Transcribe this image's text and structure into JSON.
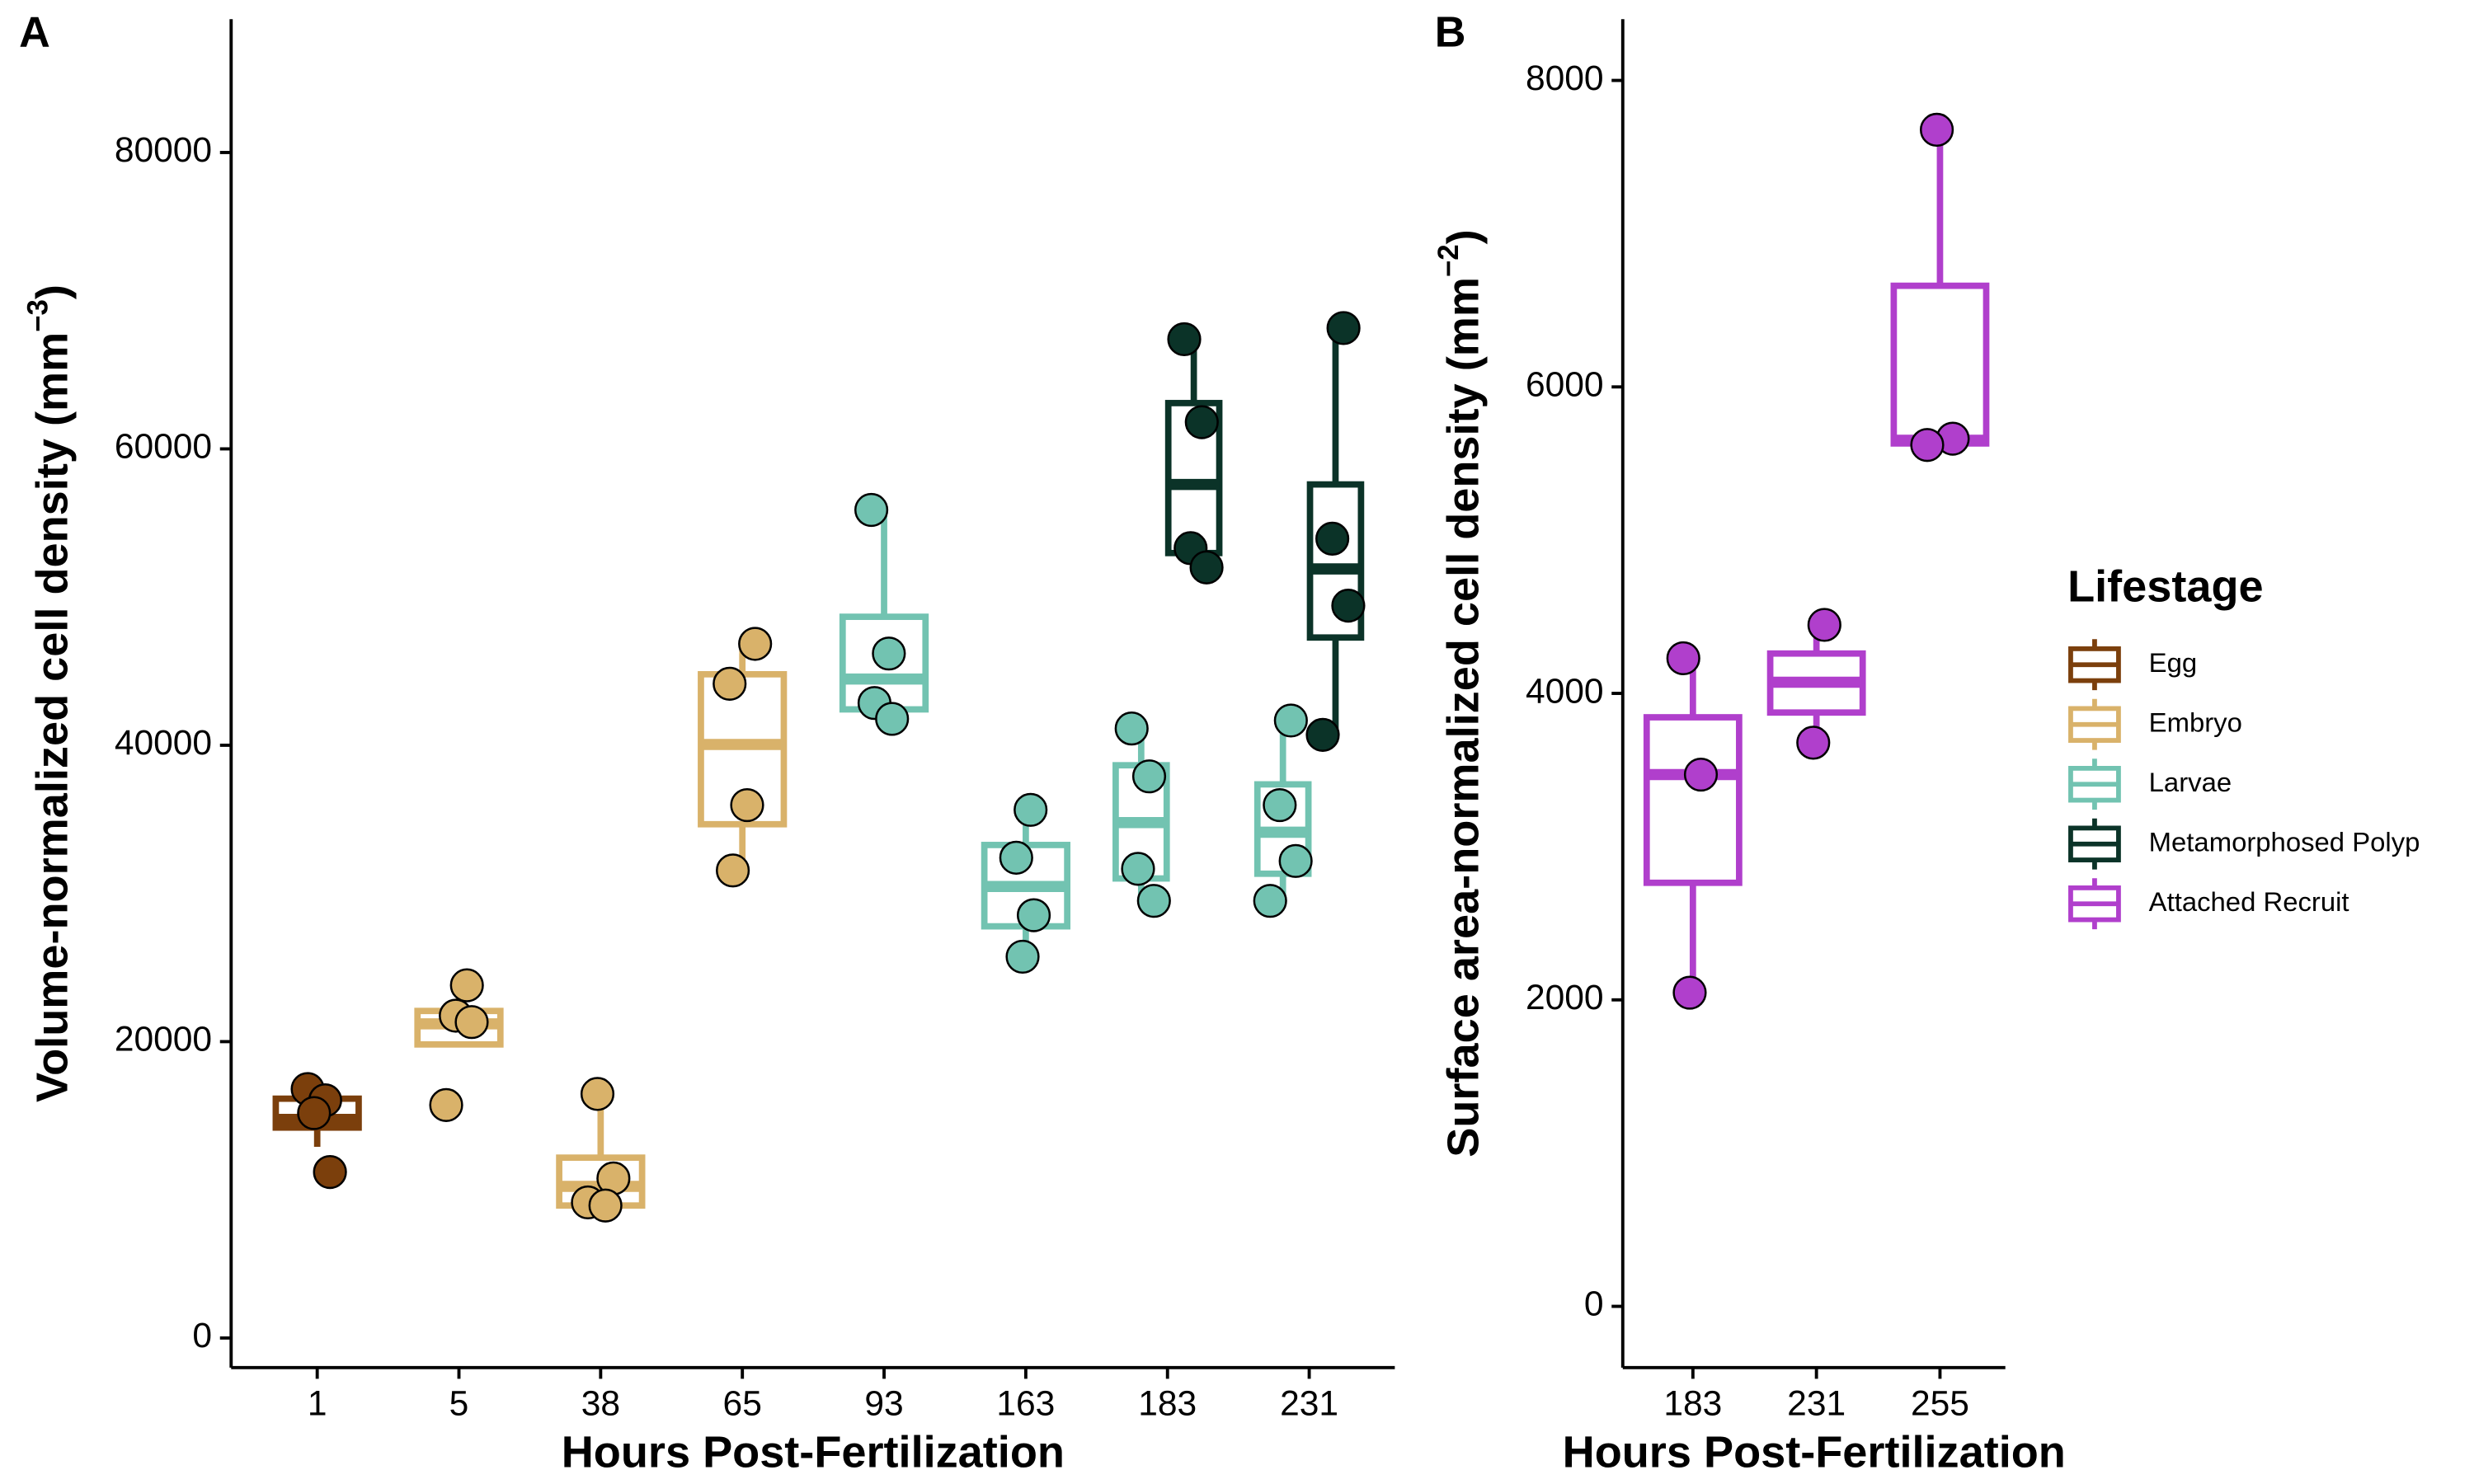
{
  "chart_data": [
    {
      "type": "box",
      "panel_label": "A",
      "x_label": "Hours Post-Fertilization",
      "y_label": {
        "text": "Volume-normalized cell density (mm",
        "superscript": "−3",
        "suffix": ")"
      },
      "categories": [
        "1",
        "5",
        "38",
        "65",
        "93",
        "163",
        "183",
        "231"
      ],
      "ylim": [
        -2000,
        89000
      ],
      "yticks": [
        0,
        20000,
        40000,
        60000,
        80000
      ],
      "series": [
        {
          "name": "Egg",
          "color": "#7b3f0c",
          "values": [
            {
              "low": 12900,
              "q1": 14200,
              "median": 14750,
              "q3": 16150,
              "high": 16800,
              "points": [
                16800,
                16040,
                15180,
                11200
              ]
            },
            null,
            null,
            null,
            null,
            null,
            null,
            null
          ]
        },
        {
          "name": "Embryo",
          "color": "#d9b26a",
          "values": [
            null,
            {
              "low": 19810,
              "q1": 19810,
              "median": 21200,
              "q3": 22070,
              "high": 23800,
              "points": [
                23800,
                21750,
                21320,
                15720
              ]
            },
            {
              "low": 8940,
              "q1": 8940,
              "median": 10230,
              "q3": 12170,
              "high": 16470,
              "points": [
                16470,
                10770,
                9150,
                8940
              ]
            },
            {
              "low": 31550,
              "q1": 34670,
              "median": 40050,
              "q3": 44790,
              "high": 46840,
              "points": [
                46840,
                44150,
                35960,
                31550
              ]
            },
            null,
            null,
            null,
            null
          ]
        },
        {
          "name": "Larvae",
          "color": "#72c3b1",
          "values": [
            null,
            null,
            null,
            null,
            {
              "low": 41780,
              "q1": 42420,
              "median": 44470,
              "q3": 48670,
              "high": 55880,
              "points": [
                55880,
                46190,
                42850,
                41780
              ]
            },
            {
              "low": 25730,
              "q1": 27780,
              "median": 30470,
              "q3": 33270,
              "high": 35640,
              "points": [
                35640,
                32410,
                28530,
                25730
              ]
            },
            {
              "low": 29500,
              "q1": 31010,
              "median": 34780,
              "q3": 38650,
              "high": 41130,
              "points": [
                41130,
                37900,
                31660,
                29500
              ]
            },
            {
              "low": 29500,
              "q1": 31330,
              "median": 34130,
              "q3": 37360,
              "high": 41670,
              "points": [
                41670,
                35960,
                32190,
                29500
              ]
            }
          ]
        },
        {
          "name": "Metamorphosed Polyp",
          "color": "#0b3328",
          "values": [
            null,
            null,
            null,
            null,
            null,
            null,
            {
              "low": 52000,
              "q1": 52970,
              "median": 57600,
              "q3": 63090,
              "high": 67400,
              "points": [
                67400,
                61800,
                53300,
                52000
              ]
            },
            {
              "low": 40700,
              "q1": 47270,
              "median": 51900,
              "q3": 57600,
              "high": 68150,
              "points": [
                68150,
                53940,
                49420,
                40700
              ]
            }
          ]
        }
      ]
    },
    {
      "type": "box",
      "panel_label": "B",
      "x_label": "Hours Post-Fertilization",
      "y_label": {
        "text": "Surface area-normalized cell density (mm",
        "superscript": "−2",
        "suffix": ")"
      },
      "categories": [
        "183",
        "231",
        "255"
      ],
      "ylim": [
        -400,
        8400
      ],
      "yticks": [
        0,
        2000,
        4000,
        6000,
        8000
      ],
      "series": [
        {
          "name": "Attached Recruit",
          "color": "#b03fcc",
          "values": [
            {
              "low": 2047,
              "q1": 2764,
              "median": 3470,
              "q3": 3844,
              "high": 4229,
              "points": [
                4229,
                3470,
                2047
              ]
            },
            {
              "low": 3678,
              "q1": 3875,
              "median": 4073,
              "q3": 4260,
              "high": 4447,
              "points": [
                4447,
                3678
              ]
            },
            {
              "low": 5621,
              "q1": 5631,
              "median": 5652,
              "q3": 6660,
              "high": 7678,
              "points": [
                7678,
                5662,
                5621
              ]
            }
          ]
        }
      ]
    }
  ],
  "legend": {
    "title": "Lifestage"
  }
}
